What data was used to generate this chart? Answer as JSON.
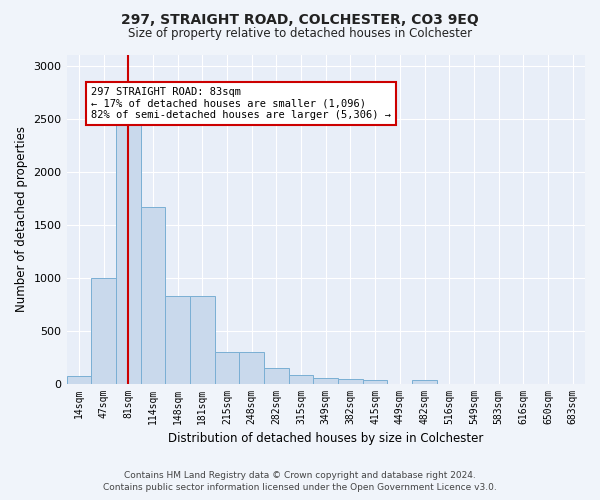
{
  "title": "297, STRAIGHT ROAD, COLCHESTER, CO3 9EQ",
  "subtitle": "Size of property relative to detached houses in Colchester",
  "xlabel": "Distribution of detached houses by size in Colchester",
  "ylabel": "Number of detached properties",
  "categories": [
    "14sqm",
    "47sqm",
    "81sqm",
    "114sqm",
    "148sqm",
    "181sqm",
    "215sqm",
    "248sqm",
    "282sqm",
    "315sqm",
    "349sqm",
    "382sqm",
    "415sqm",
    "449sqm",
    "482sqm",
    "516sqm",
    "549sqm",
    "583sqm",
    "616sqm",
    "650sqm",
    "683sqm"
  ],
  "values": [
    75,
    1000,
    2480,
    1670,
    830,
    830,
    300,
    300,
    150,
    80,
    55,
    45,
    35,
    0,
    35,
    0,
    0,
    0,
    0,
    0,
    0
  ],
  "bar_color": "#c9d9ec",
  "bar_edge_color": "#7aafd4",
  "vline_x_idx": 2,
  "vline_color": "#cc0000",
  "annotation_text": "297 STRAIGHT ROAD: 83sqm\n← 17% of detached houses are smaller (1,096)\n82% of semi-detached houses are larger (5,306) →",
  "annotation_box_color": "#ffffff",
  "annotation_box_edge": "#cc0000",
  "ylim": [
    0,
    3100
  ],
  "yticks": [
    0,
    500,
    1000,
    1500,
    2000,
    2500,
    3000
  ],
  "footer": "Contains HM Land Registry data © Crown copyright and database right 2024.\nContains public sector information licensed under the Open Government Licence v3.0.",
  "bg_color": "#f0f4fa",
  "plot_bg_color": "#e8eef8"
}
